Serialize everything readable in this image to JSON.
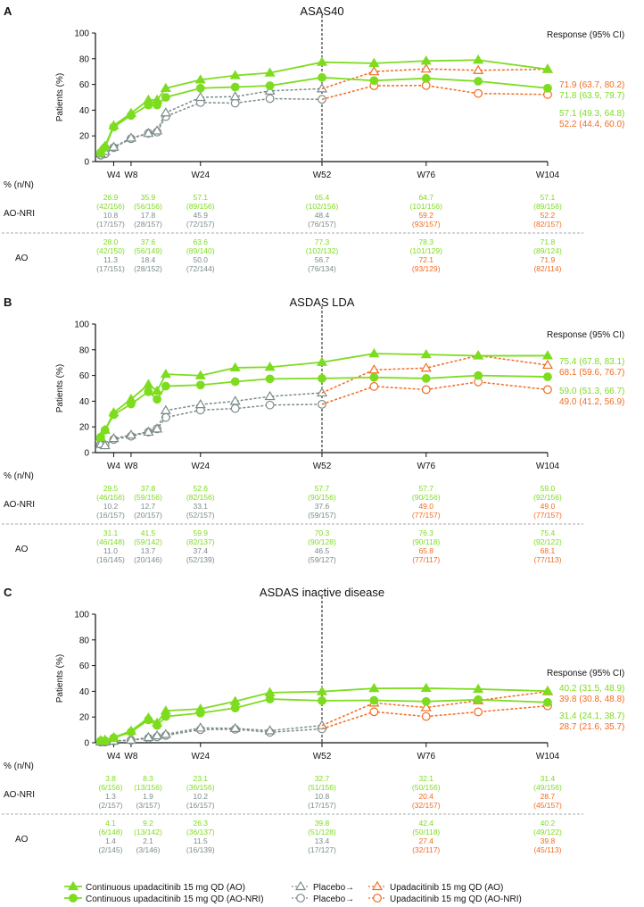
{
  "colors": {
    "green": "#7ddc1f",
    "orange": "#f26b21",
    "gray": "#7d8b8b",
    "black": "#111111"
  },
  "legend": [
    {
      "label": "Continuous upadacitinib 15 mg QD (AO)",
      "series": "cont_AO"
    },
    {
      "label": "Continuous upadacitinib 15 mg QD (AO-NRI)",
      "series": "cont_NRI"
    },
    {
      "label": "Placebo→",
      "series": "pbo_AO"
    },
    {
      "label": "Placebo→",
      "series": "pbo_NRI"
    },
    {
      "label": "Upadacitinib 15 mg QD (AO)",
      "series": "upa_AO"
    },
    {
      "label": "Upadacitinib 15 mg QD (AO-NRI)",
      "series": "upa_NRI"
    }
  ],
  "chart_data": [
    {
      "type": "line",
      "letter": "A",
      "title": "ASAS40",
      "ylabel": "Patients (%)",
      "xlabel": "",
      "ylim": [
        0,
        100
      ],
      "yticks": [
        "0",
        "20",
        "40",
        "60",
        "80",
        "100"
      ],
      "xlim": [
        0,
        104
      ],
      "xticks": [
        "W4",
        "W8",
        "W24",
        "W52",
        "W76",
        "W104"
      ],
      "xtick_weeks": [
        4,
        8,
        24,
        52,
        76,
        104
      ],
      "weeks_cont": [
        1,
        2,
        4,
        8,
        12,
        14,
        16,
        24,
        32,
        40,
        52,
        64,
        76,
        88,
        104
      ],
      "weeks_pbo": [
        1,
        2,
        4,
        8,
        12,
        14,
        16,
        24,
        32,
        40,
        52
      ],
      "weeks_upa": [
        52,
        64,
        76,
        88,
        104
      ],
      "series": {
        "cont_AO": [
          8,
          12,
          28.0,
          37.6,
          48,
          48,
          57,
          63.6,
          67,
          69,
          77.3,
          76.5,
          78.3,
          79,
          71.8
        ],
        "cont_NRI": [
          7,
          11,
          26.9,
          35.9,
          44,
          44,
          50,
          57.1,
          58,
          59,
          65.4,
          63,
          64.7,
          62.5,
          57.1
        ],
        "pbo_AO": [
          6,
          8,
          11.3,
          18.4,
          22,
          24,
          38,
          50.0,
          50.5,
          55,
          56.7
        ],
        "pbo_NRI": [
          5,
          6,
          10.8,
          17.8,
          22,
          23,
          35,
          45.9,
          45.5,
          49,
          48.4
        ],
        "upa_AO": [
          56.7,
          70,
          72.1,
          71,
          71.9
        ],
        "upa_NRI": [
          48.4,
          59,
          59.2,
          53,
          52.2
        ]
      },
      "response_header": "Response (95% CI)",
      "responses": [
        {
          "text": "71.9 (63.7, 80.2)",
          "color": "orange"
        },
        {
          "text": "71.8 (63.9, 79.7)",
          "color": "green"
        },
        {
          "text": "57.1 (49.3, 64.8)",
          "color": "green"
        },
        {
          "text": "52.2 (44.4, 60.0)",
          "color": "orange"
        }
      ],
      "table": {
        "header": "% (n/N)",
        "rows": [
          {
            "label": "AO-NRI",
            "cont": [
              [
                "26.9",
                "(42/156)"
              ],
              [
                "35.9",
                "(56/156)"
              ],
              [
                "57.1",
                "(89/156)"
              ],
              [
                "65.4",
                "(102/156)"
              ],
              [
                "64.7",
                "(101/156)"
              ],
              [
                "57.1",
                "(89/156)"
              ]
            ],
            "other": [
              [
                "10.8",
                "(17/157)"
              ],
              [
                "17.8",
                "(28/157)"
              ],
              [
                "45.9",
                "(72/157)"
              ],
              [
                "48.4",
                "(76/157)"
              ],
              [
                "59.2",
                "(93/157)"
              ],
              [
                "52.2",
                "(82/157)"
              ]
            ]
          },
          {
            "label": "AO",
            "cont": [
              [
                "28.0",
                "(42/150)"
              ],
              [
                "37.6",
                "(56/149)"
              ],
              [
                "63.6",
                "(89/140)"
              ],
              [
                "77.3",
                "(102/132)"
              ],
              [
                "78.3",
                "(101/129)"
              ],
              [
                "71.8",
                "(89/124)"
              ]
            ],
            "other": [
              [
                "11.3",
                "(17/151)"
              ],
              [
                "18.4",
                "(28/152)"
              ],
              [
                "50.0",
                "(72/144)"
              ],
              [
                "56.7",
                "(76/134)"
              ],
              [
                "72.1",
                "(93/129)"
              ],
              [
                "71.9",
                "(82/114)"
              ]
            ]
          }
        ]
      }
    },
    {
      "type": "line",
      "letter": "B",
      "title": "ASDAS LDA",
      "ylabel": "Patients (%)",
      "xlabel": "",
      "ylim": [
        0,
        100
      ],
      "yticks": [
        "0",
        "20",
        "40",
        "60",
        "80",
        "100"
      ],
      "xlim": [
        0,
        104
      ],
      "xticks": [
        "W4",
        "W8",
        "W24",
        "W52",
        "W76",
        "W104"
      ],
      "xtick_weeks": [
        4,
        8,
        24,
        52,
        76,
        104
      ],
      "weeks_cont": [
        1,
        2,
        4,
        8,
        12,
        14,
        16,
        24,
        32,
        40,
        52,
        64,
        76,
        88,
        104
      ],
      "weeks_pbo": [
        1,
        2,
        4,
        8,
        12,
        14,
        16,
        24,
        32,
        40,
        52
      ],
      "weeks_upa": [
        52,
        64,
        76,
        88,
        104
      ],
      "series": {
        "cont_AO": [
          12,
          17.5,
          31.1,
          41.5,
          53,
          48,
          61,
          59.9,
          66,
          66.5,
          70.3,
          77,
          76.3,
          75.3,
          75.4
        ],
        "cont_NRI": [
          12,
          17.5,
          29.5,
          37.8,
          47.4,
          41.5,
          51.7,
          52.6,
          55.2,
          57.4,
          57.7,
          58.5,
          57.7,
          60,
          59.0
        ],
        "pbo_AO": [
          6.5,
          5.5,
          11.0,
          13.7,
          16,
          18.5,
          32.8,
          37.4,
          40,
          43.7,
          46.5
        ],
        "pbo_NRI": [
          6.5,
          6,
          10.2,
          12.7,
          16,
          18.5,
          27.3,
          33.1,
          34.3,
          37,
          37.6
        ],
        "upa_AO": [
          46.5,
          64.4,
          65.8,
          75.5,
          68.1
        ],
        "upa_NRI": [
          37.6,
          51.5,
          49.0,
          55,
          49.0
        ]
      },
      "response_header": "Response (95% CI)",
      "responses": [
        {
          "text": "75.4 (67.8, 83.1)",
          "color": "green"
        },
        {
          "text": "68.1 (59.6, 76.7)",
          "color": "orange"
        },
        {
          "text": "59.0 (51.3, 66.7)",
          "color": "green"
        },
        {
          "text": "49.0 (41.2, 56.9)",
          "color": "orange"
        }
      ],
      "table": {
        "header": "% (n/N)",
        "rows": [
          {
            "label": "AO-NRI",
            "cont": [
              [
                "29.5",
                "(46/156)"
              ],
              [
                "37.8",
                "(59/156)"
              ],
              [
                "52.6",
                "(82/156)"
              ],
              [
                "57.7",
                "(90/156)"
              ],
              [
                "57.7",
                "(90/156)"
              ],
              [
                "59.0",
                "(92/156)"
              ]
            ],
            "other": [
              [
                "10.2",
                "(16/157)"
              ],
              [
                "12.7",
                "(20/157)"
              ],
              [
                "33.1",
                "(52/157)"
              ],
              [
                "37.6",
                "(59/157)"
              ],
              [
                "49.0",
                "(77/157)"
              ],
              [
                "49.0",
                "(77/157)"
              ]
            ]
          },
          {
            "label": "AO",
            "cont": [
              [
                "31.1",
                "(46/148)"
              ],
              [
                "41.5",
                "(59/142)"
              ],
              [
                "59.9",
                "(82/137)"
              ],
              [
                "70.3",
                "(90/128)"
              ],
              [
                "76.3",
                "(90/118)"
              ],
              [
                "75.4",
                "(92/122)"
              ]
            ],
            "other": [
              [
                "11.0",
                "(16/145)"
              ],
              [
                "13.7",
                "(20/146)"
              ],
              [
                "37.4",
                "(52/139)"
              ],
              [
                "46.5",
                "(59/127)"
              ],
              [
                "65.8",
                "(77/117)"
              ],
              [
                "68.1",
                "(77/113)"
              ]
            ]
          }
        ]
      }
    },
    {
      "type": "line",
      "letter": "C",
      "title": "ASDAS inactive disease",
      "ylabel": "Patients (%)",
      "xlabel": "",
      "ylim": [
        0,
        100
      ],
      "yticks": [
        "0",
        "20",
        "40",
        "60",
        "80",
        "100"
      ],
      "xlim": [
        0,
        104
      ],
      "xticks": [
        "W4",
        "W8",
        "W24",
        "W52",
        "W76",
        "W104"
      ],
      "xtick_weeks": [
        4,
        8,
        24,
        52,
        76,
        104
      ],
      "weeks_cont": [
        1,
        2,
        4,
        8,
        12,
        14,
        16,
        24,
        32,
        40,
        52,
        64,
        76,
        88,
        104
      ],
      "weeks_pbo": [
        1,
        2,
        4,
        8,
        12,
        14,
        16,
        24,
        32,
        40,
        52
      ],
      "weeks_upa": [
        52,
        64,
        76,
        88,
        104
      ],
      "series": {
        "cont_AO": [
          1.8,
          2.2,
          4.1,
          9.2,
          19.3,
          15.4,
          24.8,
          26.3,
          32.2,
          39,
          39.8,
          42.3,
          42.4,
          41.7,
          40.2
        ],
        "cont_NRI": [
          1.5,
          1.5,
          3.8,
          8.3,
          17.8,
          13.4,
          20.4,
          23.1,
          27,
          34,
          32.7,
          33,
          32.1,
          33.5,
          31.4
        ],
        "pbo_AO": [
          0.7,
          0.7,
          1.4,
          2.1,
          4.2,
          5.5,
          6.6,
          11.5,
          11.2,
          9.4,
          13.4
        ],
        "pbo_NRI": [
          0.5,
          0.5,
          1.3,
          1.9,
          3.5,
          4.6,
          5.7,
          10.2,
          10.5,
          8.1,
          10.8
        ],
        "upa_AO": [
          13.4,
          31,
          27.4,
          32.8,
          39.8
        ],
        "upa_NRI": [
          10.8,
          24.1,
          20.4,
          24,
          28.7
        ]
      },
      "response_header": "Response (95% CI)",
      "responses": [
        {
          "text": "40.2 (31.5, 48.9)",
          "color": "green"
        },
        {
          "text": "39.8 (30.8, 48.8)",
          "color": "orange"
        },
        {
          "text": "31.4 (24.1, 38.7)",
          "color": "green"
        },
        {
          "text": "28.7 (21.6, 35.7)",
          "color": "orange"
        }
      ],
      "table": {
        "header": "% (n/N)",
        "rows": [
          {
            "label": "AO-NRI",
            "cont": [
              [
                "3.8",
                "(6/156)"
              ],
              [
                "8.3",
                "(13/156)"
              ],
              [
                "23.1",
                "(36/156)"
              ],
              [
                "32.7",
                "(51/156)"
              ],
              [
                "32.1",
                "(50/156)"
              ],
              [
                "31.4",
                "(49/156)"
              ]
            ],
            "other": [
              [
                "1.3",
                "(2/157)"
              ],
              [
                "1.9",
                "(3/157)"
              ],
              [
                "10.2",
                "(16/157)"
              ],
              [
                "10.8",
                "(17/157)"
              ],
              [
                "20.4",
                "(32/157)"
              ],
              [
                "28.7",
                "(45/157)"
              ]
            ]
          },
          {
            "label": "AO",
            "cont": [
              [
                "4.1",
                "(6/148)"
              ],
              [
                "9.2",
                "(13/142)"
              ],
              [
                "26.3",
                "(36/137)"
              ],
              [
                "39.8",
                "(51/128)"
              ],
              [
                "42.4",
                "(50/118)"
              ],
              [
                "40.2",
                "(49/122)"
              ]
            ],
            "other": [
              [
                "1.4",
                "(2/145)"
              ],
              [
                "2.1",
                "(3/146)"
              ],
              [
                "11.5",
                "(16/139)"
              ],
              [
                "13.4",
                "(17/127)"
              ],
              [
                "27.4",
                "(32/117)"
              ],
              [
                "39.8",
                "(45/113)"
              ]
            ]
          }
        ]
      }
    }
  ]
}
